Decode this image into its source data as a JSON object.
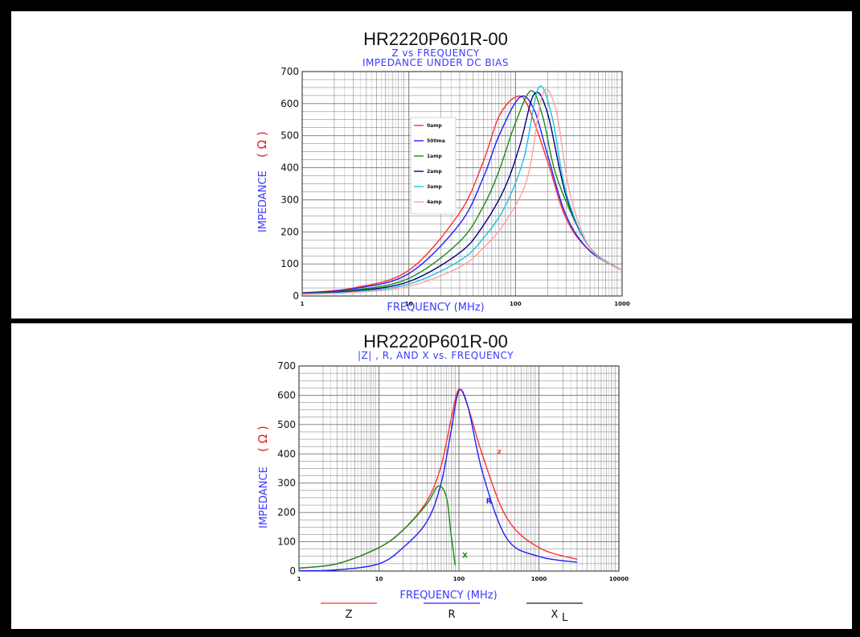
{
  "chart_data": [
    {
      "type": "line",
      "title": "HR2220P601R-00",
      "subtitle1": "Z vs FREQUENCY",
      "subtitle2": "IMPEDANCE UNDER DC BIAS",
      "xlabel": "FREQUENCY (MHz)",
      "ylabel": "IMPEDANCE",
      "ylabel_unit": "( Ω )",
      "xscale": "log",
      "xlim": [
        1,
        1000
      ],
      "ylim": [
        0,
        700
      ],
      "yticks": [
        "0",
        "100",
        "200",
        "300",
        "400",
        "500",
        "600",
        "700"
      ],
      "xticks": [
        "1",
        "10",
        "100",
        "1000"
      ],
      "legend_position": "center-left",
      "series": [
        {
          "name": "0amp",
          "color": "#ff3030",
          "x": [
            1,
            3,
            10,
            30,
            50,
            70,
            100,
            130,
            200,
            300,
            500,
            1000
          ],
          "y": [
            10,
            25,
            80,
            260,
            420,
            560,
            620,
            595,
            420,
            240,
            140,
            80
          ]
        },
        {
          "name": "500ma",
          "color": "#2020ff",
          "x": [
            1,
            3,
            10,
            30,
            50,
            70,
            110,
            150,
            200,
            300,
            500,
            1000
          ],
          "y": [
            9,
            22,
            70,
            225,
            370,
            500,
            620,
            580,
            440,
            250,
            140,
            80
          ]
        },
        {
          "name": "1amp",
          "color": "#1a8a1a",
          "x": [
            1,
            3,
            10,
            30,
            50,
            70,
            100,
            140,
            180,
            250,
            500,
            1000
          ],
          "y": [
            8,
            18,
            55,
            170,
            280,
            390,
            540,
            640,
            560,
            360,
            150,
            80
          ]
        },
        {
          "name": "2amp",
          "color": "#000080",
          "x": [
            1,
            3,
            10,
            30,
            50,
            80,
            110,
            150,
            200,
            300,
            500,
            1000
          ],
          "y": [
            7,
            15,
            45,
            135,
            220,
            340,
            470,
            630,
            570,
            310,
            150,
            80
          ]
        },
        {
          "name": "3amp",
          "color": "#20c0e0",
          "x": [
            1,
            3,
            10,
            30,
            50,
            80,
            120,
            165,
            220,
            300,
            500,
            1000
          ],
          "y": [
            6,
            13,
            37,
            110,
            180,
            280,
            430,
            650,
            560,
            320,
            150,
            80
          ]
        },
        {
          "name": "4amp",
          "color": "#ffa0a0",
          "x": [
            1,
            3,
            10,
            30,
            50,
            80,
            130,
            180,
            240,
            320,
            500,
            1000
          ],
          "y": [
            5,
            11,
            30,
            90,
            150,
            230,
            370,
            630,
            580,
            330,
            150,
            80
          ]
        }
      ]
    },
    {
      "type": "line",
      "title": "HR2220P601R-00",
      "subtitle1": "|Z| , R, AND X vs. FREQUENCY",
      "xlabel": "FREQUENCY (MHz)",
      "ylabel": "IMPEDANCE",
      "ylabel_unit": "( Ω )",
      "xscale": "log",
      "xlim": [
        1,
        10000
      ],
      "ylim": [
        0,
        700
      ],
      "yticks": [
        "0",
        "100",
        "200",
        "300",
        "400",
        "500",
        "600",
        "700"
      ],
      "xticks": [
        "1",
        "10",
        "100",
        "1000",
        "10000"
      ],
      "series": [
        {
          "name": "Z",
          "label": "Z",
          "color": "#ff3030",
          "x": [
            1,
            3,
            10,
            20,
            40,
            60,
            80,
            100,
            130,
            200,
            400,
            1000,
            3000
          ],
          "y": [
            10,
            25,
            80,
            140,
            240,
            360,
            520,
            620,
            560,
            390,
            180,
            80,
            40
          ]
        },
        {
          "name": "R",
          "label": "R",
          "color": "#2020ff",
          "x": [
            1,
            3,
            10,
            20,
            40,
            60,
            80,
            100,
            130,
            200,
            400,
            1000,
            3000
          ],
          "y": [
            1,
            4,
            25,
            80,
            170,
            300,
            480,
            615,
            560,
            330,
            110,
            50,
            30
          ]
        },
        {
          "name": "XL",
          "label": "X",
          "color": "#1a8a1a",
          "x": [
            1,
            3,
            10,
            20,
            40,
            55,
            70,
            80,
            90
          ],
          "y": [
            10,
            25,
            80,
            140,
            230,
            290,
            250,
            120,
            20
          ]
        }
      ],
      "legend_labels": [
        "Z",
        "R",
        "X"
      ],
      "legend_sub": "L"
    }
  ]
}
